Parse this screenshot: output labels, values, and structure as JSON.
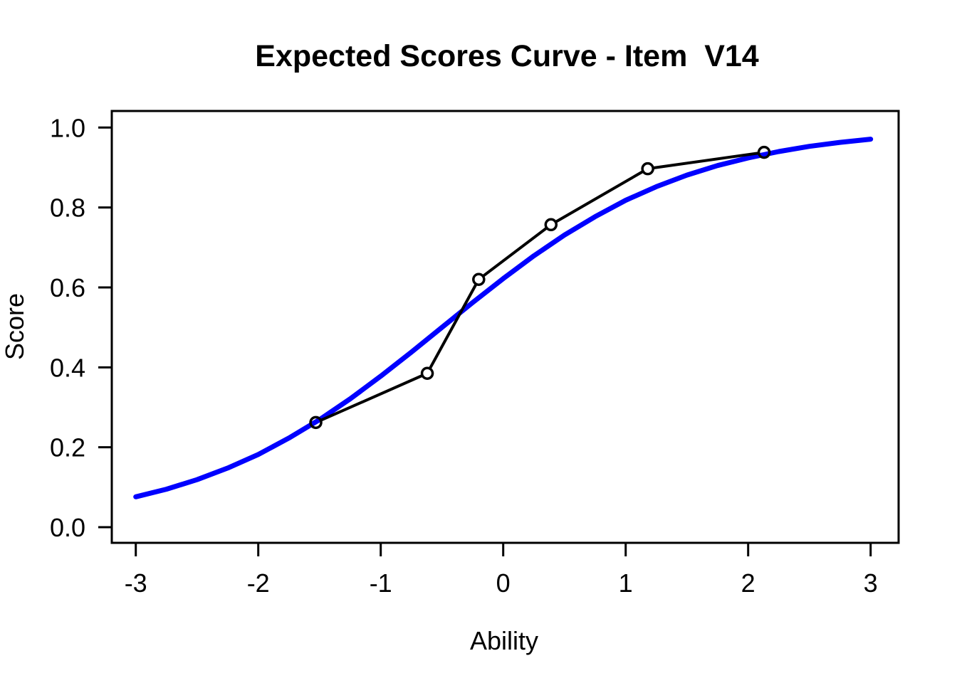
{
  "figure": {
    "title": "Expected Scores Curve - Item  V14",
    "x_axis_label": "Ability",
    "y_axis_label": "Score"
  },
  "chart_data": {
    "type": "line",
    "title": "Expected Scores Curve - Item  V14",
    "xlabel": "Ability",
    "ylabel": "Score",
    "xlim": [
      -3.2,
      3.2
    ],
    "ylim": [
      -0.04,
      1.04
    ],
    "grid": false,
    "legend_position": "none",
    "x_ticks": [
      -3,
      -2,
      -1,
      0,
      1,
      2,
      3
    ],
    "x_tick_labels": [
      "-3",
      "-2",
      "-1",
      "0",
      "1",
      "2",
      "3"
    ],
    "y_ticks": [
      0,
      0.2,
      0.4,
      0.6,
      0.8,
      1
    ],
    "y_tick_labels": [
      "0.0",
      "0.2",
      "0.4",
      "0.6",
      "0.8",
      "1.0"
    ],
    "series": [
      {
        "name": "model-expected-score-curve",
        "type": "smooth-line",
        "color": "#0000ff",
        "marker": null,
        "x": [
          -3,
          -2.75,
          -2.5,
          -2.25,
          -2,
          -1.75,
          -1.5,
          -1.25,
          -1,
          -0.75,
          -0.5,
          -0.25,
          0,
          0.25,
          0.5,
          0.75,
          1,
          1.25,
          1.5,
          1.75,
          2,
          2.25,
          2.5,
          2.75,
          3
        ],
        "y": [
          0.076,
          0.095,
          0.119,
          0.148,
          0.182,
          0.223,
          0.269,
          0.321,
          0.378,
          0.438,
          0.5,
          0.562,
          0.622,
          0.679,
          0.731,
          0.777,
          0.818,
          0.852,
          0.881,
          0.905,
          0.924,
          0.94,
          0.953,
          0.963,
          0.971
        ]
      },
      {
        "name": "observed-group-scores",
        "type": "line-with-points",
        "color": "#000000",
        "marker": "open-circle",
        "x": [
          -1.53,
          -0.62,
          -0.2,
          0.39,
          1.18,
          2.13
        ],
        "y": [
          0.262,
          0.385,
          0.62,
          0.757,
          0.897,
          0.938
        ]
      }
    ],
    "colors": {
      "model_curve": "#0000ff",
      "observed": "#000000",
      "background": "#ffffff",
      "text": "#000000"
    }
  }
}
